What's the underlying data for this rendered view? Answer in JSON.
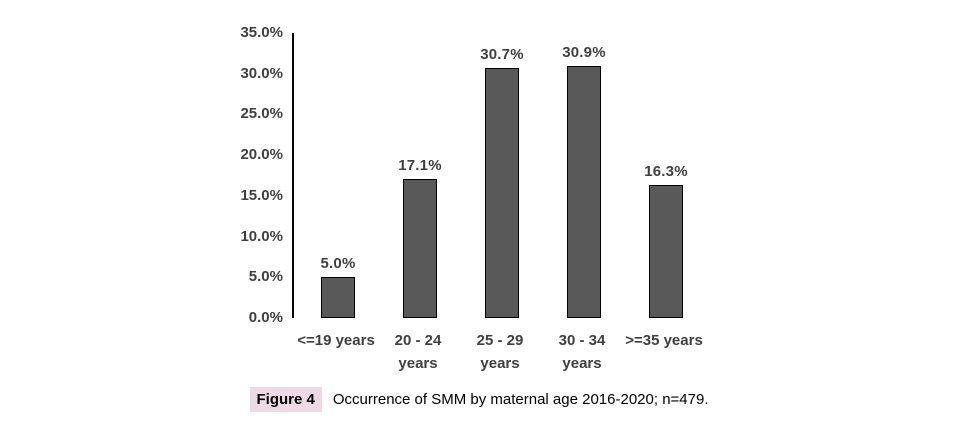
{
  "figure": {
    "caption": {
      "label": "Figure 4",
      "text": "Occurrence of SMM by maternal age 2016-2020; n=479.",
      "label_highlight_color": "#eed9e5",
      "text_color": "#000000"
    }
  },
  "chart_data": {
    "type": "bar",
    "title": "",
    "xlabel": "",
    "ylabel": "",
    "categories": [
      "<=19 years",
      "20 - 24 years",
      "25 - 29 years",
      "30 - 34 years",
      ">=35 years"
    ],
    "category_display_lines": [
      [
        "<=19 years"
      ],
      [
        "20 - 24",
        "years"
      ],
      [
        "25 - 29",
        "years"
      ],
      [
        "30 - 34",
        "years"
      ],
      [
        ">=35 years"
      ]
    ],
    "values": [
      5.0,
      17.1,
      30.7,
      30.9,
      16.3
    ],
    "data_labels": [
      "5.0%",
      "17.1%",
      "30.7%",
      "30.9%",
      "16.3%"
    ],
    "ylim": [
      0,
      35
    ],
    "yticks": [
      0,
      5,
      10,
      15,
      20,
      25,
      30,
      35
    ],
    "ytick_labels": [
      "0.0%",
      "5.0%",
      "10.0%",
      "15.0%",
      "20.0%",
      "25.0%",
      "30.0%",
      "35.0%"
    ],
    "grid": false,
    "legend": false,
    "bar_color": "#595959",
    "bar_border_color": "#000000",
    "axis_line_color": "#000000",
    "label_color": "#3f3f3f"
  }
}
